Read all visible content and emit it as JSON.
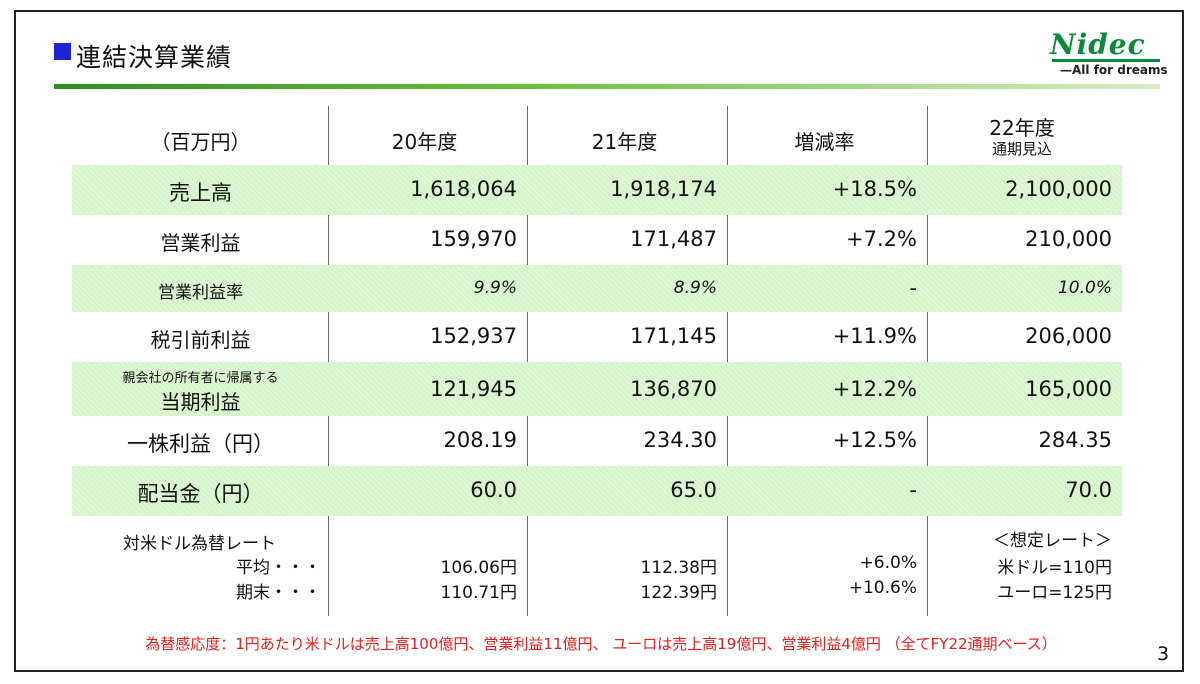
{
  "title": "連結決算業績",
  "logo": {
    "name": "Nidec",
    "tagline": "—All for dreams"
  },
  "colors": {
    "accent": "#1e25d6",
    "brand": "#0a8a3a",
    "band": "#d6f4cb",
    "note": "#e02020"
  },
  "header": {
    "unit": "（百万円）",
    "col1": "20年度",
    "col2": "21年度",
    "col3": "増減率",
    "col4_main": "22年度",
    "col4_sub": "通期見込"
  },
  "rows": [
    {
      "label": "売上高",
      "v1": "1,618,064",
      "v2": "1,918,174",
      "v3": "+18.5%",
      "v4": "2,100,000"
    },
    {
      "label": "営業利益",
      "v1": "159,970",
      "v2": "171,487",
      "v3": "+7.2%",
      "v4": "210,000"
    },
    {
      "label": "営業利益率",
      "v1": "9.9%",
      "v2": "8.9%",
      "v3": "-",
      "v4": "10.0%"
    },
    {
      "label": "税引前利益",
      "v1": "152,937",
      "v2": "171,145",
      "v3": "+11.9%",
      "v4": "206,000"
    },
    {
      "label_small": "親会社の所有者に帰属する",
      "label": "当期利益",
      "v1": "121,945",
      "v2": "136,870",
      "v3": "+12.2%",
      "v4": "165,000"
    },
    {
      "label": "一株利益（円）",
      "v1": "208.19",
      "v2": "234.30",
      "v3": "+12.5%",
      "v4": "284.35"
    },
    {
      "label": "配当金（円）",
      "v1": "60.0",
      "v2": "65.0",
      "v3": "-",
      "v4": "70.0"
    }
  ],
  "fx": {
    "title": "対米ドル為替レート",
    "avg_label": "平均・・・",
    "end_label": "期末・・・",
    "avg": {
      "v1": "106.06円",
      "v2": "112.38円",
      "v3": "+6.0%"
    },
    "end": {
      "v1": "110.71円",
      "v2": "122.39円",
      "v3": "+10.6%"
    },
    "assumed_title": "＜想定レート＞",
    "assumed_usd": "米ドル=110円",
    "assumed_eur": "ユーロ=125円"
  },
  "note": "為替感応度：1円あたり米ドルは売上高100億円、営業利益11億円、 ユーロは売上高19億円、営業利益4億円 （全てFY22通期ベース）",
  "page_number": "3"
}
